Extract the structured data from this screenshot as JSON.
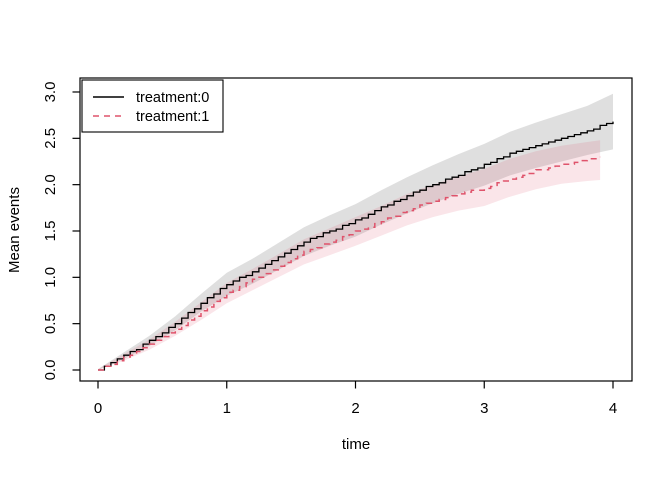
{
  "figure": {
    "background": "#ffffff"
  },
  "chart_data": {
    "type": "line",
    "title": "",
    "xlabel": "time",
    "ylabel": "Mean events",
    "xlim": [
      0,
      4
    ],
    "ylim": [
      0.0,
      3.0
    ],
    "grid": false,
    "x_ticks": [
      "0",
      "1",
      "2",
      "3",
      "4"
    ],
    "x_tick_values": [
      0,
      1,
      2,
      3,
      4
    ],
    "y_ticks": [
      "0.0",
      "0.5",
      "1.0",
      "1.5",
      "2.0",
      "2.5",
      "3.0"
    ],
    "y_tick_values": [
      0.0,
      0.5,
      1.0,
      1.5,
      2.0,
      2.5,
      3.0
    ],
    "legend": {
      "position": "topleft",
      "entries": [
        {
          "label": "treatment:0",
          "color": "#000000",
          "style": "solid"
        },
        {
          "label": "treatment:1",
          "color": "#df536b",
          "style": "dashed"
        }
      ]
    },
    "colors": {
      "treatment0_line": "#000000",
      "treatment0_band": "rgba(140,140,140,0.28)",
      "treatment1_line": "#df536b",
      "treatment1_band": "rgba(223,83,107,0.15)",
      "axis": "#000000"
    },
    "series": [
      {
        "name": "treatment:0",
        "style": "solid",
        "t": [
          0.0,
          0.2,
          0.4,
          0.6,
          0.8,
          1.0,
          1.2,
          1.4,
          1.6,
          1.8,
          2.0,
          2.2,
          2.4,
          2.6,
          2.8,
          3.0,
          3.2,
          3.4,
          3.6,
          3.8,
          4.0
        ],
        "mean": [
          0.0,
          0.15,
          0.31,
          0.5,
          0.72,
          0.92,
          1.06,
          1.22,
          1.38,
          1.5,
          1.61,
          1.75,
          1.88,
          2.0,
          2.11,
          2.21,
          2.33,
          2.42,
          2.5,
          2.58,
          2.68
        ],
        "upper": [
          0.01,
          0.19,
          0.37,
          0.58,
          0.82,
          1.05,
          1.2,
          1.37,
          1.54,
          1.67,
          1.79,
          1.94,
          2.08,
          2.21,
          2.33,
          2.44,
          2.57,
          2.67,
          2.76,
          2.85,
          2.98
        ],
        "lower": [
          0.0,
          0.12,
          0.26,
          0.43,
          0.63,
          0.8,
          0.93,
          1.08,
          1.23,
          1.34,
          1.44,
          1.57,
          1.69,
          1.8,
          1.9,
          1.99,
          2.1,
          2.18,
          2.25,
          2.32,
          2.38
        ]
      },
      {
        "name": "treatment:1",
        "style": "dashed",
        "t": [
          0.0,
          0.2,
          0.4,
          0.6,
          0.8,
          1.0,
          1.2,
          1.4,
          1.6,
          1.8,
          2.0,
          2.2,
          2.4,
          2.6,
          2.8,
          3.0,
          3.2,
          3.4,
          3.6,
          3.8,
          3.9
        ],
        "mean": [
          0.0,
          0.13,
          0.27,
          0.44,
          0.63,
          0.83,
          0.97,
          1.12,
          1.27,
          1.38,
          1.49,
          1.6,
          1.72,
          1.82,
          1.9,
          1.96,
          2.07,
          2.15,
          2.21,
          2.27,
          2.3
        ],
        "upper": [
          0.01,
          0.17,
          0.33,
          0.52,
          0.73,
          0.94,
          1.09,
          1.25,
          1.41,
          1.53,
          1.65,
          1.77,
          1.9,
          2.0,
          2.09,
          2.17,
          2.28,
          2.36,
          2.42,
          2.46,
          2.48
        ],
        "lower": [
          0.0,
          0.1,
          0.22,
          0.37,
          0.54,
          0.72,
          0.86,
          1.0,
          1.14,
          1.24,
          1.34,
          1.45,
          1.56,
          1.65,
          1.72,
          1.77,
          1.87,
          1.95,
          2.01,
          2.04,
          2.05
        ]
      }
    ]
  }
}
